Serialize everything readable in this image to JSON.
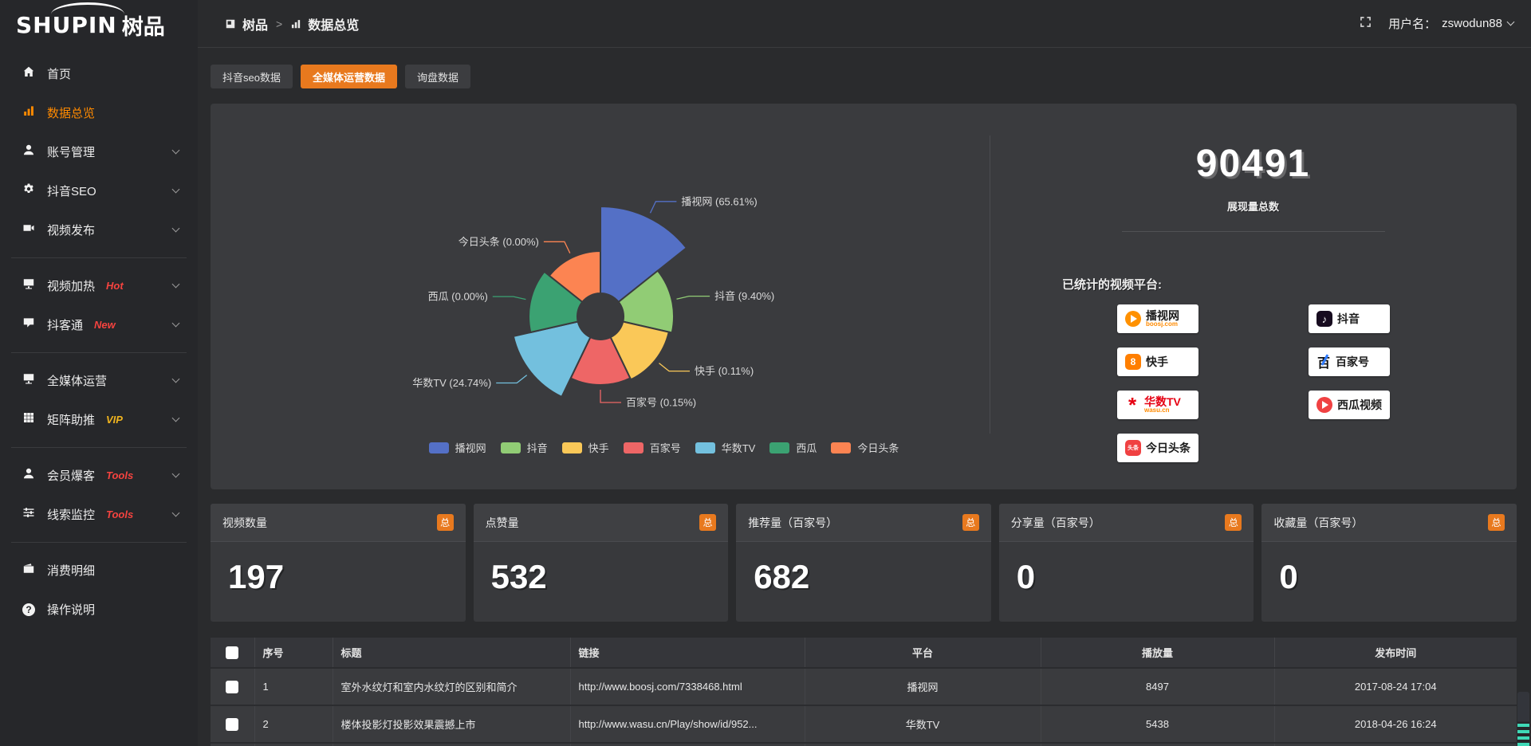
{
  "brand": {
    "name_en": "SHUPIN",
    "name_cn": "树品"
  },
  "topbar": {
    "breadcrumb": {
      "root": "树品",
      "separator": ">",
      "current": "数据总览"
    },
    "user_prefix": "用户名：",
    "username": "zswodun88"
  },
  "sidebar": {
    "items": [
      {
        "label": "首页",
        "icon": "home-icon"
      },
      {
        "label": "数据总览",
        "icon": "bar-chart-icon",
        "active": true
      },
      {
        "label": "账号管理",
        "icon": "user-icon",
        "expandable": true
      },
      {
        "label": "抖音SEO",
        "icon": "gear-icon",
        "expandable": true
      },
      {
        "label": "视频发布",
        "icon": "video-camera-icon",
        "expandable": true
      },
      {
        "divider": true
      },
      {
        "label": "视频加热",
        "icon": "screen-icon",
        "badge": "Hot",
        "badge_color": "#f5433f",
        "expandable": true
      },
      {
        "label": "抖客通",
        "icon": "chat-icon",
        "badge": "New",
        "badge_color": "#f5433f",
        "expandable": true
      },
      {
        "divider": true
      },
      {
        "label": "全媒体运营",
        "icon": "monitor-icon",
        "expandable": true
      },
      {
        "label": "矩阵助推",
        "icon": "grid-icon",
        "badge": "VIP",
        "badge_color": "#f0b41e",
        "expandable": true
      },
      {
        "divider": true
      },
      {
        "label": "会员爆客",
        "icon": "member-icon",
        "badge": "Tools",
        "badge_color": "#f5433f",
        "expandable": true
      },
      {
        "label": "线索监控",
        "icon": "sliders-icon",
        "badge": "Tools",
        "badge_color": "#f5433f",
        "expandable": true
      },
      {
        "divider": true
      },
      {
        "label": "消费明细",
        "icon": "wallet-icon"
      },
      {
        "label": "操作说明",
        "icon": "question-icon"
      }
    ]
  },
  "tabs": [
    {
      "label": "抖音seo数据",
      "active": false
    },
    {
      "label": "全媒体运营数据",
      "active": true
    },
    {
      "label": "询盘数据",
      "active": false
    }
  ],
  "chart_data": {
    "type": "pie",
    "subtype": "nightingale-rose-donut",
    "title": "",
    "categories": [
      "播视网",
      "抖音",
      "快手",
      "百家号",
      "华数TV",
      "西瓜",
      "今日头条"
    ],
    "values": [
      65.61,
      9.4,
      0.11,
      0.15,
      24.74,
      0.0,
      0.0
    ],
    "unit": "%",
    "colors": [
      "#5470c6",
      "#91cc75",
      "#fac858",
      "#ee6666",
      "#73c0de",
      "#3ba272",
      "#fc8452"
    ],
    "labels": [
      "播视网 (65.61%)",
      "抖音 (9.40%)",
      "快手 (0.11%)",
      "百家号 (0.15%)",
      "华数TV (24.74%)",
      "西瓜 (0.00%)",
      "今日头条 (0.00%)"
    ],
    "display_radii": [
      138,
      92,
      88,
      86,
      112,
      90,
      82
    ],
    "inner_radius": 29,
    "legend": [
      "播视网",
      "抖音",
      "快手",
      "百家号",
      "华数TV",
      "西瓜",
      "今日头条"
    ],
    "legend_position": "bottom"
  },
  "summary": {
    "total_value": "90491",
    "total_label": "展现量总数",
    "platforms_title": "已统计的视频平台:",
    "platforms": [
      {
        "name": "播视网",
        "sub": "boosj.com",
        "icon": "boosj-icon",
        "column": 1
      },
      {
        "name": "快手",
        "icon": "kuaishou-icon",
        "column": 1
      },
      {
        "name": "华数TV",
        "sub": "wasu.cn",
        "icon": "wasu-icon",
        "column": 1,
        "name_color": "#e60012"
      },
      {
        "name": "今日头条",
        "icon": "toutiao-icon",
        "column": 1
      },
      {
        "name": "抖音",
        "icon": "douyin-icon",
        "column": 2
      },
      {
        "name": "百家号",
        "icon": "baijiahao-icon",
        "column": 2
      },
      {
        "name": "西瓜视频",
        "icon": "xigua-icon",
        "column": 2
      }
    ]
  },
  "stat_cards": [
    {
      "title": "视频数量",
      "badge": "总",
      "value": "197"
    },
    {
      "title": "点赞量",
      "badge": "总",
      "value": "532"
    },
    {
      "title": "推荐量（百家号）",
      "badge": "总",
      "value": "682"
    },
    {
      "title": "分享量（百家号）",
      "badge": "总",
      "value": "0"
    },
    {
      "title": "收藏量（百家号）",
      "badge": "总",
      "value": "0"
    }
  ],
  "table": {
    "headers": [
      "序号",
      "标题",
      "链接",
      "平台",
      "播放量",
      "发布时间"
    ],
    "rows": [
      {
        "seq": "1",
        "title": "室外水纹灯和室内水纹灯的区别和简介",
        "link": "http://www.boosj.com/7338468.html",
        "platform": "播视网",
        "plays": "8497",
        "time": "2017-08-24 17:04",
        "checked": false
      },
      {
        "seq": "2",
        "title": "楼体投影灯投影效果震撼上市",
        "link": "http://www.wasu.cn/Play/show/id/952...",
        "platform": "华数TV",
        "plays": "5438",
        "time": "2018-04-26 16:24",
        "checked": false
      }
    ]
  },
  "colors": {
    "accent_orange": "#e8791e",
    "link_orange": "#f5871f",
    "sidebar_active_orange": "#ff8a00",
    "badge_red": "#f5433f",
    "badge_gold": "#f0b41e",
    "panel_bg": "#3a3b3e",
    "page_bg": "#2a2b2d"
  }
}
